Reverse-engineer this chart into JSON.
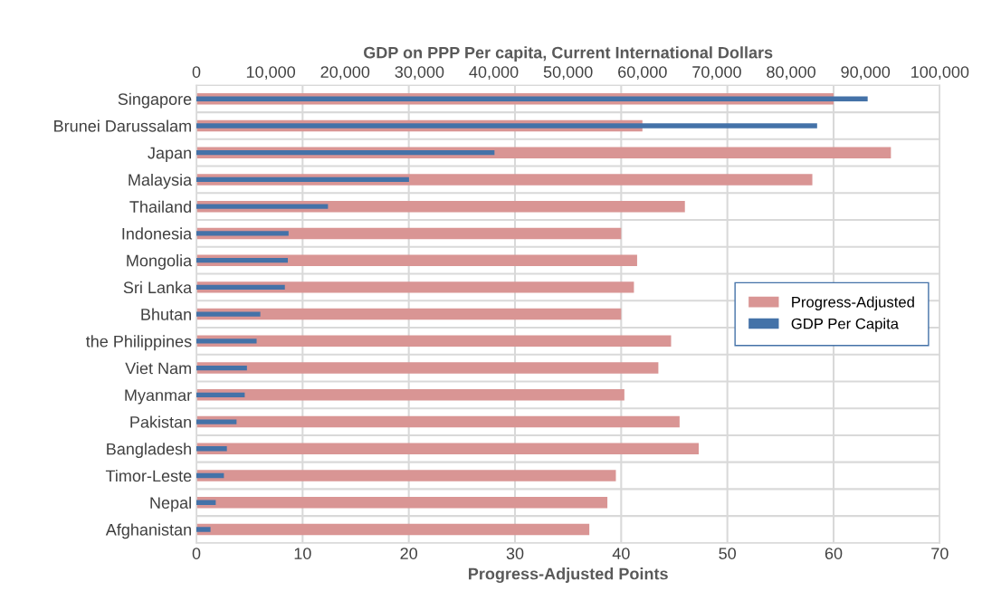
{
  "chart_data": {
    "type": "bar",
    "orientation": "horizontal",
    "categories": [
      "Singapore",
      "Brunei Darussalam",
      "Japan",
      "Malaysia",
      "Thailand",
      "Indonesia",
      "Mongolia",
      "Sri Lanka",
      "Bhutan",
      "the Philippines",
      "Viet Nam",
      "Myanmar",
      "Pakistan",
      "Bangladesh",
      "Timor-Leste",
      "Nepal",
      "Afghanistan"
    ],
    "series": [
      {
        "name": "Progress-Adjusted",
        "color": "#d99594",
        "values": [
          60.0,
          42.0,
          65.4,
          58.0,
          46.0,
          40.0,
          41.5,
          41.2,
          40.0,
          44.7,
          43.5,
          40.3,
          45.5,
          47.3,
          39.5,
          38.7,
          37.0
        ]
      },
      {
        "name": "GDP Per Capita",
        "color": "#4472a8",
        "axis": "x2",
        "values": [
          90300,
          83500,
          40100,
          28600,
          17700,
          12400,
          12300,
          11900,
          8600,
          8100,
          6800,
          6500,
          5400,
          4100,
          3700,
          2600,
          1900
        ]
      }
    ],
    "xlabel": "Progress-Adjusted Points",
    "x2label": "GDP on PPP Per capita, Current International Dollars",
    "xlim": [
      0,
      70
    ],
    "xticks": [
      0,
      10,
      20,
      30,
      40,
      50,
      60,
      70
    ],
    "x2lim": [
      0,
      100000
    ],
    "x2ticks": [
      0,
      {
        "value": 10000,
        "label": "10,000"
      },
      {
        "value": 20000,
        "label": "20,000"
      },
      {
        "value": 30000,
        "label": "30,000"
      },
      {
        "value": 40000,
        "label": "40,000"
      },
      {
        "value": 50000,
        "label": "50,000"
      },
      {
        "value": 60000,
        "label": "60,000"
      },
      {
        "value": 70000,
        "label": "70,000"
      },
      {
        "value": 80000,
        "label": "80,000"
      },
      {
        "value": 90000,
        "label": "90,000"
      },
      {
        "value": 100000,
        "label": "100,000"
      }
    ],
    "grid": true,
    "legend": "right"
  }
}
